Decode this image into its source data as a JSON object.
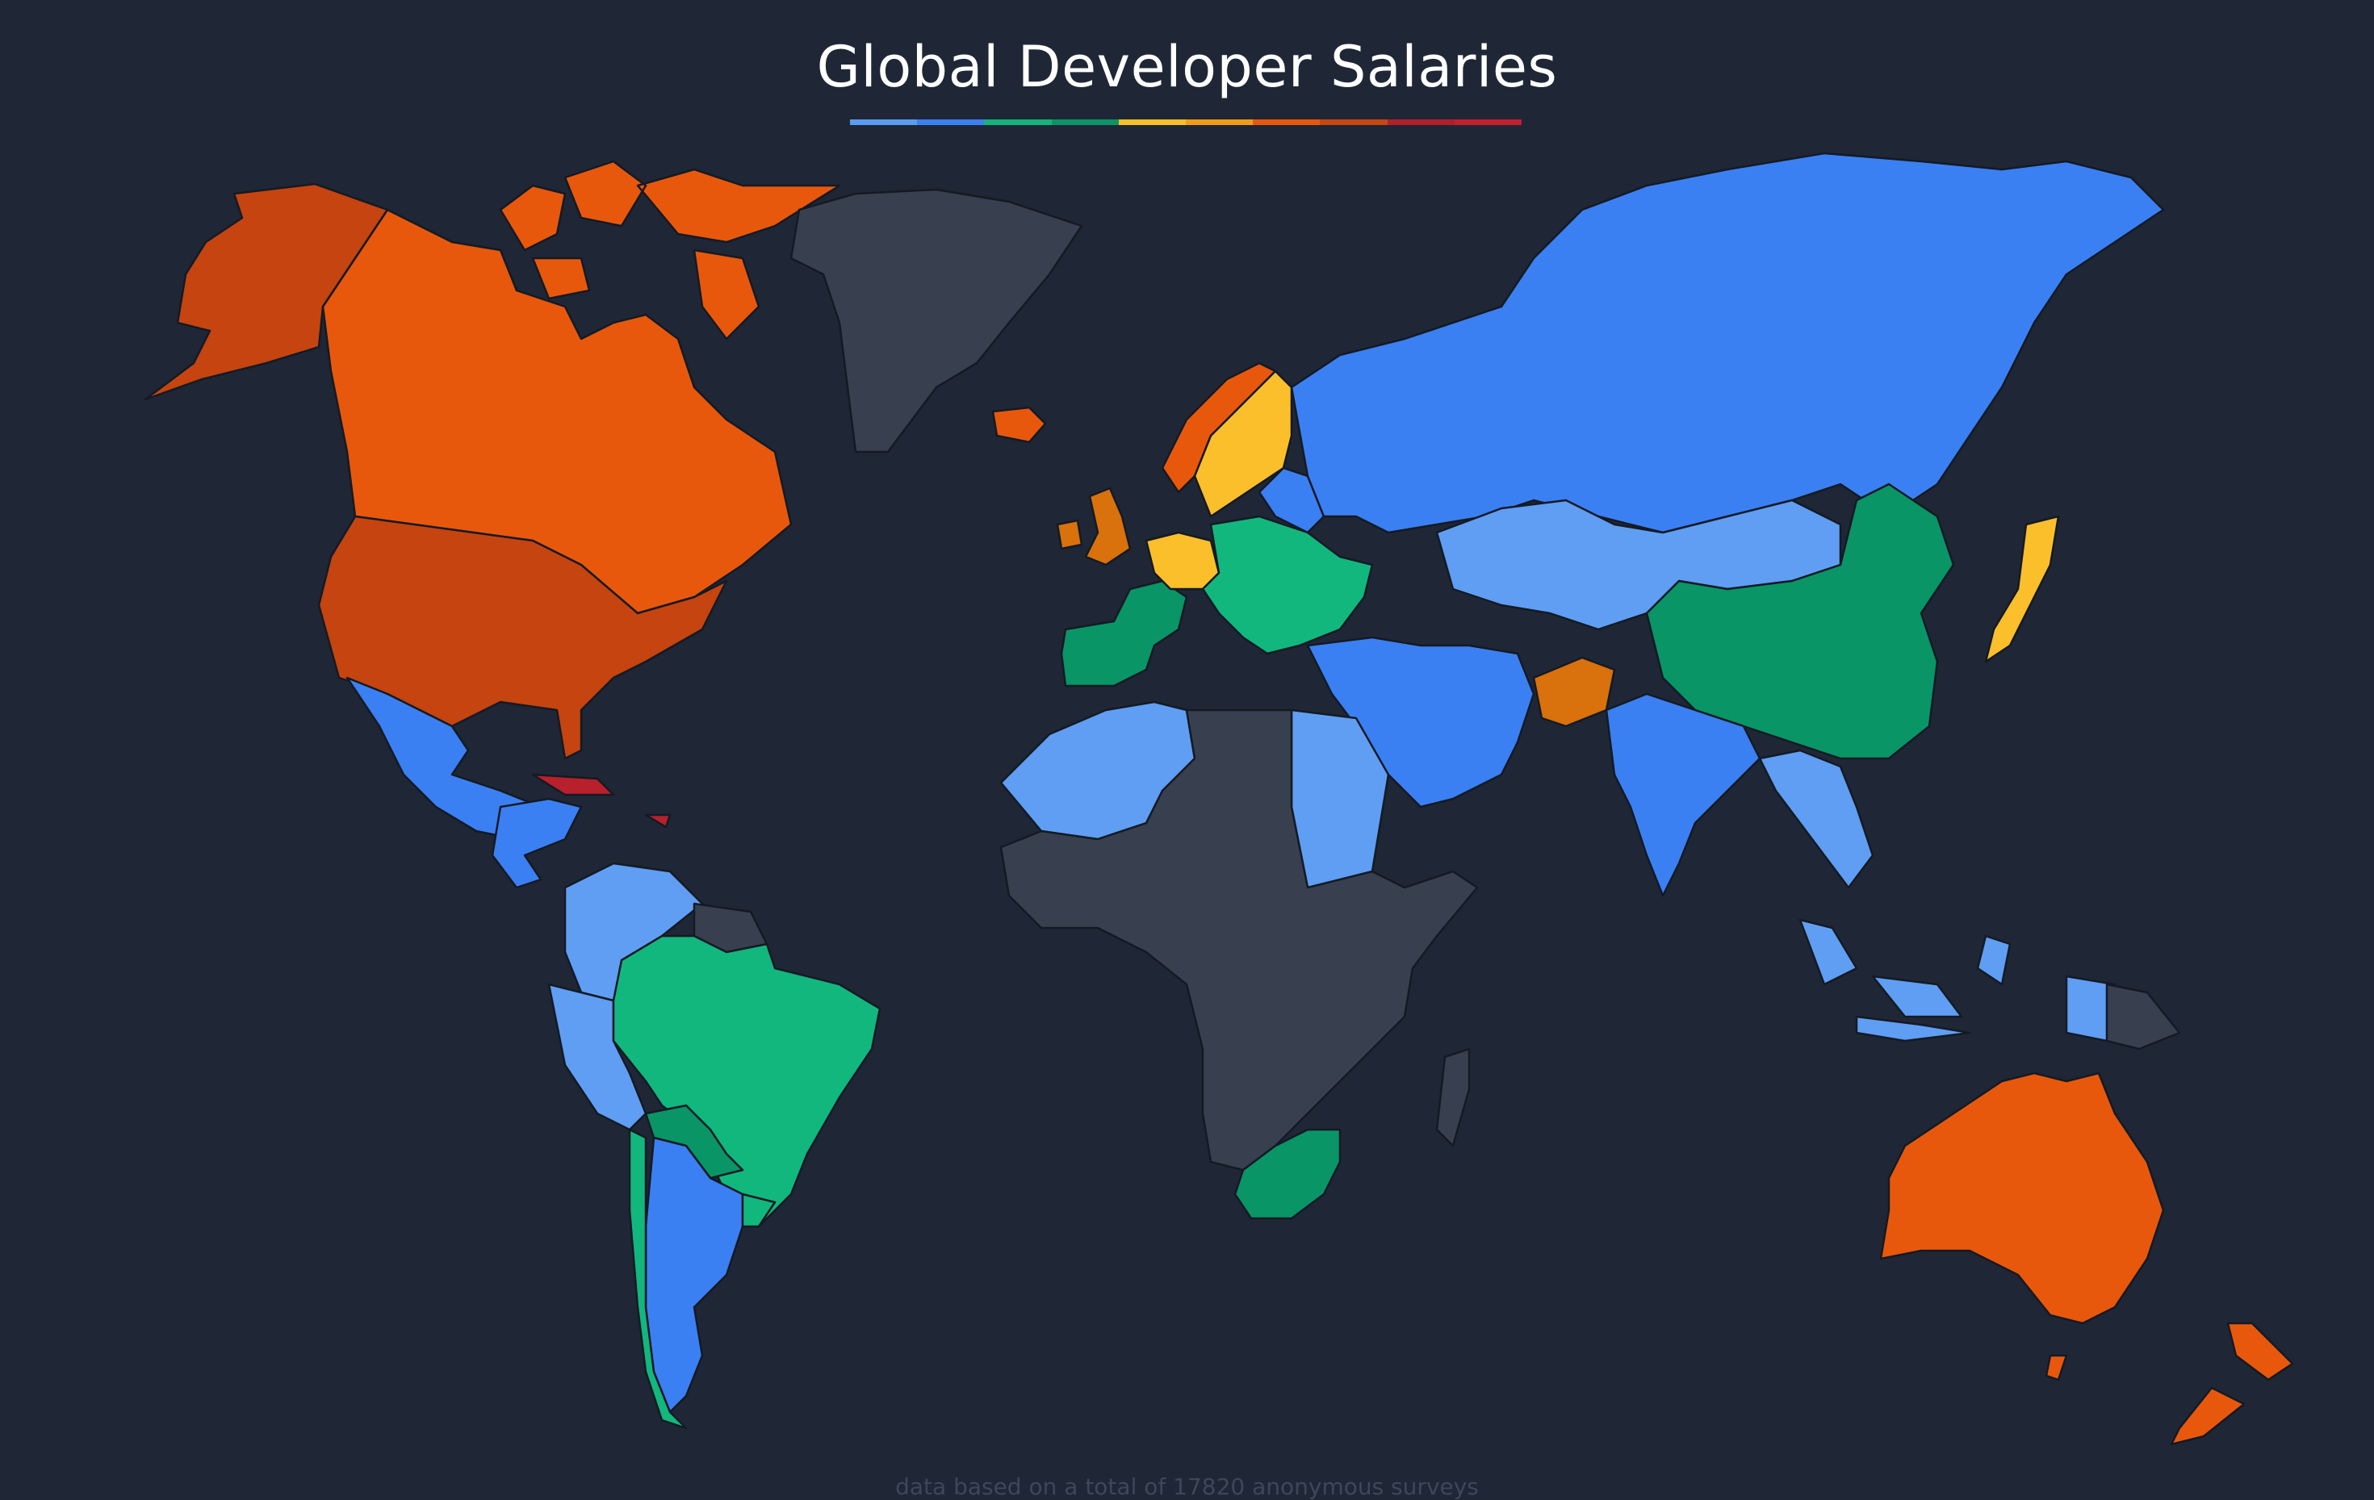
{
  "title": "Global Developer Salaries",
  "footer": "data based on a total of 17820 anonymous surveys",
  "title_bar_colors": [
    "#5b9bf0",
    "#3b7ff2",
    "#15b47c",
    "#0c9466",
    "#f8be2c",
    "#f29b1a",
    "#e8580c",
    "#c8460f",
    "#b21f2a",
    "#c41f2e"
  ],
  "palette": {
    "no_data": "#38404f",
    "light_blue": "#5f9ef3",
    "blue": "#3b80f3",
    "green": "#12b77e",
    "dark_green": "#099566",
    "yellow": "#fbbf2b",
    "amber": "#f2a51c",
    "dark_orange": "#d9710c",
    "orange": "#e8580c",
    "burnt_orange": "#c5440f",
    "red": "#b8202b"
  },
  "regions": [
    {
      "id": "alaska",
      "color": "burnt_orange"
    },
    {
      "id": "canada",
      "color": "orange"
    },
    {
      "id": "canada-islands",
      "color": "orange"
    },
    {
      "id": "usa",
      "color": "burnt_orange"
    },
    {
      "id": "greenland",
      "color": "no_data"
    },
    {
      "id": "iceland",
      "color": "orange"
    },
    {
      "id": "mexico",
      "color": "blue"
    },
    {
      "id": "central-america",
      "color": "blue"
    },
    {
      "id": "caribbean",
      "color": "red"
    },
    {
      "id": "colombia-venezuela",
      "color": "light_blue"
    },
    {
      "id": "peru",
      "color": "light_blue"
    },
    {
      "id": "brazil",
      "color": "green"
    },
    {
      "id": "bolivia-paraguay",
      "color": "dark_green"
    },
    {
      "id": "argentina",
      "color": "blue"
    },
    {
      "id": "chile",
      "color": "green"
    },
    {
      "id": "uruguay",
      "color": "green"
    },
    {
      "id": "guianas",
      "color": "no_data"
    },
    {
      "id": "uk-ireland",
      "color": "dark_orange"
    },
    {
      "id": "norway",
      "color": "orange"
    },
    {
      "id": "sweden-finland",
      "color": "yellow"
    },
    {
      "id": "france-spain",
      "color": "dark_green"
    },
    {
      "id": "germany-nl",
      "color": "yellow"
    },
    {
      "id": "central-europe",
      "color": "green"
    },
    {
      "id": "baltics-belarus",
      "color": "blue"
    },
    {
      "id": "russia",
      "color": "blue"
    },
    {
      "id": "kazakhstan-mongolia",
      "color": "light_blue"
    },
    {
      "id": "china",
      "color": "dark_green"
    },
    {
      "id": "japan",
      "color": "yellow"
    },
    {
      "id": "middle-east",
      "color": "blue"
    },
    {
      "id": "afghanistan",
      "color": "dark_orange"
    },
    {
      "id": "india",
      "color": "blue"
    },
    {
      "id": "southeast-asia",
      "color": "light_blue"
    },
    {
      "id": "indonesia",
      "color": "light_blue"
    },
    {
      "id": "north-africa",
      "color": "light_blue"
    },
    {
      "id": "sahara-central-africa",
      "color": "no_data"
    },
    {
      "id": "southern-africa",
      "color": "dark_green"
    },
    {
      "id": "madagascar",
      "color": "no_data"
    },
    {
      "id": "australia",
      "color": "orange"
    },
    {
      "id": "new-zealand",
      "color": "orange"
    },
    {
      "id": "papua",
      "color": "no_data"
    }
  ]
}
